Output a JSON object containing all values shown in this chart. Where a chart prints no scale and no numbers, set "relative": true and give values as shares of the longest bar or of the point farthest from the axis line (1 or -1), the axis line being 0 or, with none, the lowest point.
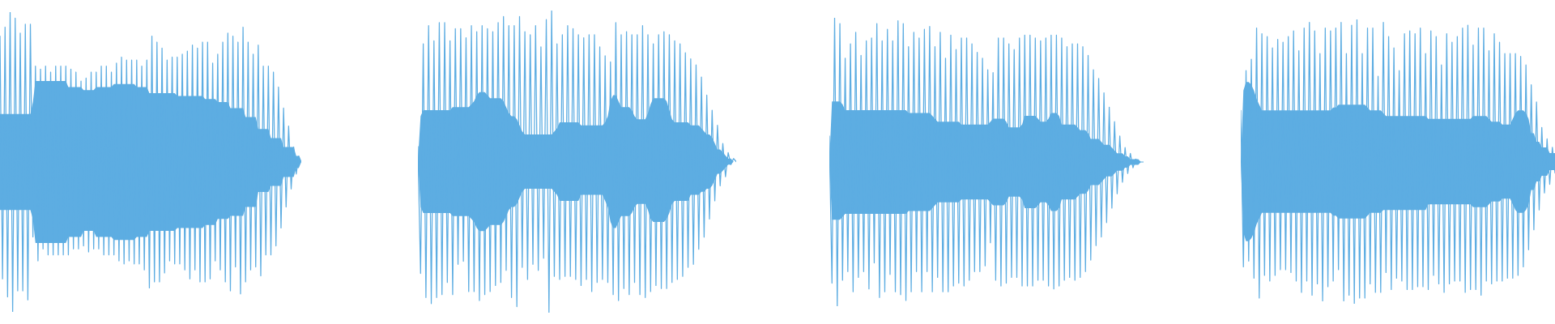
{
  "chart_data": [
    {
      "type": "line",
      "relative": true,
      "categories": [
        null,
        null,
        null,
        null,
        null,
        null,
        null,
        null,
        null,
        null,
        null,
        null,
        null,
        null,
        null,
        null,
        null,
        null,
        null,
        null,
        null,
        null,
        null,
        null,
        null,
        null,
        null,
        null,
        null,
        null,
        null,
        null,
        null,
        null,
        null,
        null,
        null,
        null,
        null,
        null,
        null,
        null,
        null,
        null,
        null,
        null,
        null,
        null,
        null,
        null,
        null,
        null,
        null,
        null,
        null,
        null,
        null,
        null,
        null,
        null,
        null,
        null,
        null,
        null,
        null,
        null,
        null,
        null,
        null,
        null,
        null,
        null,
        null,
        null,
        null,
        null,
        null,
        null,
        null,
        null,
        null,
        null,
        null,
        null,
        null,
        null,
        null,
        null,
        null,
        null,
        null,
        null,
        null,
        null,
        null,
        null,
        null,
        null,
        null,
        null,
        null,
        null,
        null,
        null,
        null,
        null,
        null,
        null,
        null,
        null,
        null,
        null,
        null,
        null,
        null,
        null,
        null,
        null,
        null,
        null
      ],
      "series": [
        {
          "color": "#5dade2",
          "values": [
            0.92,
            0.11,
            0.95,
            0.05,
            1.0,
            0.0,
            0.98,
            0.07,
            0.93,
            0.07,
            0.96,
            0.04,
            0.96,
            0.25,
            0.82,
            0.17,
            0.81,
            0.21,
            0.82,
            0.19,
            0.8,
            0.19,
            0.82,
            0.19,
            0.82,
            0.19,
            0.82,
            0.19,
            0.81,
            0.21,
            0.8,
            0.21,
            0.77,
            0.22,
            0.78,
            0.2,
            0.8,
            0.21,
            0.8,
            0.21,
            0.82,
            0.19,
            0.82,
            0.19,
            0.8,
            0.19,
            0.83,
            0.17,
            0.85,
            0.16,
            0.84,
            0.17,
            0.84,
            0.16,
            0.84,
            0.16,
            0.82,
            0.14,
            0.84,
            0.08,
            0.92,
            0.1,
            0.9,
            0.1,
            0.88,
            0.13,
            0.84,
            0.17,
            0.85,
            0.16,
            0.85,
            0.16,
            0.86,
            0.14,
            0.87,
            0.11,
            0.89,
            0.14,
            0.88,
            0.1,
            0.9,
            0.1,
            0.9,
            0.11,
            0.83,
            0.17,
            0.86,
            0.14,
            0.9,
            0.1,
            0.93,
            0.07,
            0.92,
            0.15,
            0.9,
            0.06,
            0.95,
            0.1,
            0.9,
            0.14,
            0.86,
            0.15,
            0.89,
            0.12,
            0.82,
            0.19,
            0.82,
            0.19,
            0.8,
            0.22,
            0.75,
            0.28,
            0.68,
            0.35,
            0.62,
            0.41,
            0.55,
            0.46,
            0.52,
            0.5
          ],
          "upper": [
            0.66,
            0.66,
            0.66,
            0.66,
            0.66,
            0.66,
            0.66,
            0.66,
            0.66,
            0.66,
            0.66,
            0.66,
            0.66,
            0.7,
            0.77,
            0.77,
            0.77,
            0.77,
            0.77,
            0.77,
            0.77,
            0.77,
            0.77,
            0.77,
            0.77,
            0.77,
            0.77,
            0.75,
            0.75,
            0.75,
            0.75,
            0.75,
            0.75,
            0.74,
            0.74,
            0.74,
            0.74,
            0.74,
            0.75,
            0.75,
            0.75,
            0.75,
            0.75,
            0.75,
            0.75,
            0.76,
            0.76,
            0.76,
            0.76,
            0.76,
            0.76,
            0.76,
            0.76,
            0.76,
            0.75,
            0.75,
            0.75,
            0.75,
            0.75,
            0.73,
            0.73,
            0.73,
            0.73,
            0.73,
            0.73,
            0.73,
            0.73,
            0.73,
            0.73,
            0.73,
            0.72,
            0.72,
            0.72,
            0.72,
            0.72,
            0.72,
            0.72,
            0.72,
            0.72,
            0.72,
            0.72,
            0.71,
            0.71,
            0.71,
            0.71,
            0.71,
            0.7,
            0.7,
            0.7,
            0.7,
            0.7,
            0.68,
            0.68,
            0.68,
            0.68,
            0.68,
            0.68,
            0.65,
            0.65,
            0.65,
            0.65,
            0.65,
            0.61,
            0.61,
            0.61,
            0.61,
            0.61,
            0.58,
            0.58,
            0.58,
            0.58,
            0.58,
            0.55,
            0.55,
            0.55,
            0.55,
            0.55,
            0.52,
            0.52,
            0.5
          ],
          "lower": [
            0.34,
            0.34,
            0.34,
            0.34,
            0.34,
            0.34,
            0.34,
            0.34,
            0.34,
            0.34,
            0.34,
            0.34,
            0.34,
            0.31,
            0.23,
            0.23,
            0.23,
            0.23,
            0.23,
            0.23,
            0.23,
            0.23,
            0.23,
            0.23,
            0.23,
            0.23,
            0.23,
            0.25,
            0.25,
            0.25,
            0.25,
            0.25,
            0.25,
            0.27,
            0.27,
            0.27,
            0.27,
            0.27,
            0.25,
            0.25,
            0.25,
            0.25,
            0.25,
            0.25,
            0.25,
            0.24,
            0.24,
            0.24,
            0.24,
            0.24,
            0.24,
            0.24,
            0.24,
            0.24,
            0.25,
            0.25,
            0.25,
            0.25,
            0.25,
            0.27,
            0.27,
            0.27,
            0.27,
            0.27,
            0.27,
            0.27,
            0.27,
            0.27,
            0.27,
            0.27,
            0.28,
            0.28,
            0.28,
            0.28,
            0.28,
            0.28,
            0.28,
            0.28,
            0.28,
            0.28,
            0.28,
            0.29,
            0.29,
            0.29,
            0.29,
            0.29,
            0.31,
            0.31,
            0.31,
            0.31,
            0.31,
            0.32,
            0.32,
            0.32,
            0.32,
            0.32,
            0.32,
            0.35,
            0.35,
            0.35,
            0.35,
            0.35,
            0.4,
            0.4,
            0.4,
            0.4,
            0.4,
            0.42,
            0.42,
            0.42,
            0.42,
            0.42,
            0.45,
            0.45,
            0.45,
            0.45,
            0.45,
            0.48,
            0.48,
            0.5
          ]
        }
      ]
    },
    {
      "type": "line",
      "relative": true,
      "categories": [
        null,
        null,
        null,
        null,
        null,
        null,
        null,
        null,
        null,
        null,
        null,
        null,
        null,
        null,
        null,
        null,
        null,
        null,
        null,
        null,
        null,
        null,
        null,
        null,
        null,
        null,
        null,
        null,
        null,
        null,
        null,
        null,
        null,
        null,
        null,
        null,
        null,
        null,
        null,
        null,
        null,
        null,
        null,
        null,
        null,
        null,
        null,
        null,
        null,
        null,
        null,
        null,
        null,
        null,
        null,
        null,
        null,
        null,
        null,
        null,
        null,
        null,
        null,
        null,
        null,
        null,
        null,
        null,
        null,
        null,
        null,
        null,
        null,
        null,
        null,
        null,
        null,
        null,
        null,
        null,
        null,
        null,
        null,
        null,
        null,
        null,
        null,
        null,
        null,
        null,
        null,
        null,
        null,
        null,
        null,
        null,
        null,
        null,
        null,
        null,
        null,
        null,
        null,
        null,
        null,
        null,
        null,
        null,
        null,
        null,
        null,
        null,
        null,
        null,
        null,
        null,
        null,
        null,
        null,
        null
      ],
      "series": [
        {
          "color": "#5dade2",
          "values": [
            0.55,
            0.13,
            0.89,
            0.05,
            0.95,
            0.03,
            0.9,
            0.05,
            0.96,
            0.06,
            0.96,
            0.1,
            0.9,
            0.06,
            0.94,
            0.16,
            0.94,
            0.17,
            0.91,
            0.07,
            0.95,
            0.07,
            0.93,
            0.04,
            0.95,
            0.06,
            0.94,
            0.07,
            0.93,
            0.09,
            0.96,
            0.1,
            0.98,
            0.14,
            0.95,
            0.05,
            0.95,
            0.02,
            0.98,
            0.15,
            0.93,
            0.11,
            0.92,
            0.16,
            0.95,
            0.14,
            0.88,
            0.18,
            0.97,
            0.0,
            1.0,
            0.12,
            0.89,
            0.11,
            0.92,
            0.12,
            0.95,
            0.12,
            0.94,
            0.11,
            0.92,
            0.09,
            0.91,
            0.11,
            0.92,
            0.07,
            0.92,
            0.1,
            0.88,
            0.11,
            0.85,
            0.1,
            0.83,
            0.06,
            0.96,
            0.04,
            0.92,
            0.08,
            0.93,
            0.06,
            0.92,
            0.1,
            0.92,
            0.06,
            0.95,
            0.05,
            0.92,
            0.07,
            0.89,
            0.09,
            0.92,
            0.08,
            0.93,
            0.08,
            0.92,
            0.1,
            0.9,
            0.11,
            0.89,
            0.12,
            0.86,
            0.15,
            0.84,
            0.16,
            0.82,
            0.21,
            0.78,
            0.25,
            0.72,
            0.31,
            0.67,
            0.37,
            0.62,
            0.42,
            0.56,
            0.45,
            0.53,
            0.49,
            0.51,
            0.5
          ],
          "upper": [
            0.5,
            0.65,
            0.67,
            0.67,
            0.67,
            0.67,
            0.67,
            0.67,
            0.67,
            0.67,
            0.67,
            0.67,
            0.67,
            0.68,
            0.68,
            0.68,
            0.68,
            0.68,
            0.68,
            0.68,
            0.69,
            0.7,
            0.72,
            0.73,
            0.73,
            0.73,
            0.72,
            0.71,
            0.71,
            0.71,
            0.71,
            0.71,
            0.7,
            0.68,
            0.66,
            0.65,
            0.65,
            0.64,
            0.62,
            0.6,
            0.59,
            0.59,
            0.59,
            0.59,
            0.59,
            0.59,
            0.59,
            0.59,
            0.59,
            0.59,
            0.59,
            0.6,
            0.61,
            0.63,
            0.63,
            0.63,
            0.63,
            0.63,
            0.63,
            0.63,
            0.63,
            0.62,
            0.62,
            0.62,
            0.62,
            0.62,
            0.62,
            0.62,
            0.62,
            0.62,
            0.63,
            0.65,
            0.7,
            0.72,
            0.72,
            0.7,
            0.68,
            0.68,
            0.68,
            0.68,
            0.67,
            0.65,
            0.64,
            0.64,
            0.64,
            0.64,
            0.66,
            0.69,
            0.71,
            0.71,
            0.71,
            0.71,
            0.71,
            0.7,
            0.67,
            0.64,
            0.63,
            0.63,
            0.63,
            0.63,
            0.63,
            0.63,
            0.62,
            0.62,
            0.62,
            0.62,
            0.61,
            0.6,
            0.59,
            0.59,
            0.58,
            0.56,
            0.54,
            0.54,
            0.53,
            0.52,
            0.51,
            0.51,
            0.5,
            0.5
          ],
          "lower": [
            0.5,
            0.35,
            0.33,
            0.33,
            0.33,
            0.33,
            0.33,
            0.33,
            0.33,
            0.33,
            0.33,
            0.33,
            0.33,
            0.32,
            0.32,
            0.32,
            0.32,
            0.32,
            0.32,
            0.32,
            0.31,
            0.3,
            0.28,
            0.27,
            0.27,
            0.27,
            0.28,
            0.29,
            0.29,
            0.29,
            0.29,
            0.29,
            0.3,
            0.32,
            0.34,
            0.35,
            0.35,
            0.36,
            0.38,
            0.4,
            0.41,
            0.41,
            0.41,
            0.41,
            0.41,
            0.41,
            0.41,
            0.41,
            0.41,
            0.41,
            0.41,
            0.4,
            0.39,
            0.37,
            0.37,
            0.37,
            0.37,
            0.37,
            0.37,
            0.37,
            0.37,
            0.39,
            0.39,
            0.39,
            0.39,
            0.39,
            0.39,
            0.39,
            0.39,
            0.39,
            0.37,
            0.35,
            0.3,
            0.28,
            0.28,
            0.3,
            0.32,
            0.32,
            0.32,
            0.32,
            0.33,
            0.35,
            0.36,
            0.36,
            0.36,
            0.36,
            0.34,
            0.31,
            0.3,
            0.3,
            0.3,
            0.3,
            0.3,
            0.31,
            0.33,
            0.36,
            0.37,
            0.37,
            0.37,
            0.37,
            0.37,
            0.37,
            0.39,
            0.39,
            0.39,
            0.39,
            0.4,
            0.4,
            0.41,
            0.41,
            0.42,
            0.44,
            0.46,
            0.46,
            0.47,
            0.48,
            0.49,
            0.49,
            0.5,
            0.5
          ]
        }
      ]
    },
    {
      "type": "line",
      "relative": true,
      "categories": [
        null,
        null,
        null,
        null,
        null,
        null,
        null,
        null,
        null,
        null,
        null,
        null,
        null,
        null,
        null,
        null,
        null,
        null,
        null,
        null,
        null,
        null,
        null,
        null,
        null,
        null,
        null,
        null,
        null,
        null,
        null,
        null,
        null,
        null,
        null,
        null,
        null,
        null,
        null,
        null,
        null,
        null,
        null,
        null,
        null,
        null,
        null,
        null,
        null,
        null,
        null,
        null,
        null,
        null,
        null,
        null,
        null,
        null,
        null,
        null,
        null,
        null,
        null,
        null,
        null,
        null,
        null,
        null,
        null,
        null,
        null,
        null,
        null,
        null,
        null,
        null,
        null,
        null,
        null,
        null,
        null,
        null,
        null,
        null,
        null,
        null,
        null,
        null,
        null,
        null,
        null,
        null,
        null,
        null,
        null,
        null,
        null,
        null,
        null,
        null,
        null,
        null,
        null,
        null,
        null,
        null,
        null,
        null,
        null,
        null,
        null,
        null,
        null,
        null,
        null,
        null,
        null,
        null,
        null,
        null
      ],
      "series": [
        {
          "color": "#5dade2",
          "values": [
            0.59,
            0.08,
            1.0,
            0.0,
            0.98,
            0.09,
            0.86,
            0.12,
            0.91,
            0.05,
            0.95,
            0.1,
            0.87,
            0.12,
            0.92,
            0.06,
            0.93,
            0.15,
            0.98,
            0.03,
            0.92,
            0.05,
            0.96,
            0.11,
            0.92,
            0.05,
            0.99,
            0.04,
            0.98,
            0.02,
            0.9,
            0.05,
            0.95,
            0.12,
            0.93,
            0.05,
            0.96,
            0.12,
            0.97,
            0.05,
            0.9,
            0.1,
            0.95,
            0.05,
            0.86,
            0.05,
            0.94,
            0.07,
            0.89,
            0.08,
            0.93,
            0.07,
            0.93,
            0.09,
            0.91,
            0.12,
            0.88,
            0.12,
            0.86,
            0.14,
            0.82,
            0.22,
            0.81,
            0.09,
            0.93,
            0.07,
            0.93,
            0.08,
            0.91,
            0.1,
            0.89,
            0.1,
            0.93,
            0.07,
            0.94,
            0.07,
            0.94,
            0.07,
            0.93,
            0.09,
            0.92,
            0.09,
            0.93,
            0.07,
            0.94,
            0.06,
            0.94,
            0.07,
            0.93,
            0.09,
            0.9,
            0.1,
            0.91,
            0.09,
            0.91,
            0.1,
            0.9,
            0.12,
            0.87,
            0.16,
            0.82,
            0.21,
            0.79,
            0.24,
            0.74,
            0.29,
            0.69,
            0.34,
            0.64,
            0.39,
            0.59,
            0.43,
            0.55,
            0.46,
            0.53,
            0.48,
            0.51,
            0.5,
            0.5,
            0.5
          ],
          "upper": [
            0.5,
            0.71,
            0.71,
            0.71,
            0.71,
            0.7,
            0.68,
            0.68,
            0.68,
            0.68,
            0.68,
            0.68,
            0.68,
            0.68,
            0.68,
            0.68,
            0.68,
            0.68,
            0.68,
            0.68,
            0.68,
            0.68,
            0.68,
            0.68,
            0.68,
            0.68,
            0.68,
            0.68,
            0.68,
            0.68,
            0.67,
            0.67,
            0.67,
            0.67,
            0.67,
            0.67,
            0.67,
            0.67,
            0.67,
            0.66,
            0.65,
            0.64,
            0.64,
            0.64,
            0.64,
            0.64,
            0.64,
            0.64,
            0.64,
            0.64,
            0.63,
            0.63,
            0.63,
            0.63,
            0.63,
            0.63,
            0.63,
            0.63,
            0.63,
            0.63,
            0.63,
            0.64,
            0.65,
            0.65,
            0.65,
            0.65,
            0.65,
            0.64,
            0.62,
            0.62,
            0.62,
            0.62,
            0.62,
            0.63,
            0.66,
            0.66,
            0.66,
            0.66,
            0.66,
            0.65,
            0.64,
            0.64,
            0.64,
            0.65,
            0.67,
            0.67,
            0.67,
            0.66,
            0.63,
            0.63,
            0.63,
            0.63,
            0.63,
            0.63,
            0.62,
            0.61,
            0.61,
            0.61,
            0.6,
            0.58,
            0.58,
            0.58,
            0.58,
            0.57,
            0.56,
            0.56,
            0.56,
            0.55,
            0.54,
            0.53,
            0.53,
            0.53,
            0.52,
            0.52,
            0.51,
            0.51,
            0.51,
            0.51,
            0.5,
            0.5
          ],
          "lower": [
            0.5,
            0.3,
            0.3,
            0.3,
            0.3,
            0.31,
            0.32,
            0.32,
            0.32,
            0.32,
            0.32,
            0.32,
            0.32,
            0.32,
            0.32,
            0.32,
            0.32,
            0.32,
            0.32,
            0.32,
            0.32,
            0.32,
            0.32,
            0.32,
            0.32,
            0.32,
            0.32,
            0.32,
            0.32,
            0.32,
            0.33,
            0.33,
            0.33,
            0.33,
            0.33,
            0.33,
            0.33,
            0.33,
            0.33,
            0.34,
            0.35,
            0.36,
            0.36,
            0.36,
            0.36,
            0.36,
            0.36,
            0.36,
            0.36,
            0.36,
            0.37,
            0.37,
            0.37,
            0.37,
            0.37,
            0.37,
            0.37,
            0.37,
            0.37,
            0.37,
            0.37,
            0.36,
            0.35,
            0.35,
            0.35,
            0.35,
            0.35,
            0.36,
            0.38,
            0.38,
            0.38,
            0.38,
            0.38,
            0.37,
            0.34,
            0.34,
            0.34,
            0.34,
            0.34,
            0.35,
            0.36,
            0.36,
            0.36,
            0.35,
            0.33,
            0.33,
            0.33,
            0.34,
            0.37,
            0.37,
            0.37,
            0.37,
            0.37,
            0.37,
            0.38,
            0.39,
            0.39,
            0.39,
            0.4,
            0.42,
            0.42,
            0.42,
            0.42,
            0.43,
            0.44,
            0.45,
            0.45,
            0.45,
            0.46,
            0.47,
            0.47,
            0.47,
            0.48,
            0.48,
            0.49,
            0.49,
            0.49,
            0.49,
            0.5,
            0.5
          ]
        }
      ]
    },
    {
      "type": "line",
      "relative": true,
      "categories": [
        null,
        null,
        null,
        null,
        null,
        null,
        null,
        null,
        null,
        null,
        null,
        null,
        null,
        null,
        null,
        null,
        null,
        null,
        null,
        null,
        null,
        null,
        null,
        null,
        null,
        null,
        null,
        null,
        null,
        null,
        null,
        null,
        null,
        null,
        null,
        null,
        null,
        null,
        null,
        null,
        null,
        null,
        null,
        null,
        null,
        null,
        null,
        null,
        null,
        null,
        null,
        null,
        null,
        null,
        null,
        null,
        null,
        null,
        null,
        null,
        null,
        null,
        null,
        null,
        null,
        null,
        null,
        null,
        null,
        null,
        null,
        null,
        null,
        null,
        null,
        null,
        null,
        null,
        null,
        null,
        null,
        null,
        null,
        null,
        null,
        null,
        null,
        null,
        null,
        null,
        null,
        null,
        null,
        null,
        null,
        null,
        null,
        null,
        null,
        null,
        null,
        null,
        null,
        null,
        null,
        null,
        null,
        null,
        null,
        null,
        null,
        null,
        null,
        null,
        null,
        null,
        null,
        null,
        null,
        null
      ],
      "series": [
        {
          "color": "#5dade2",
          "values": [
            0.68,
            0.13,
            0.82,
            0.15,
            0.86,
            0.09,
            0.97,
            0.02,
            0.95,
            0.1,
            0.94,
            0.08,
            0.9,
            0.1,
            0.93,
            0.12,
            0.92,
            0.12,
            0.94,
            0.11,
            0.96,
            0.08,
            0.89,
            0.04,
            0.97,
            0.08,
            0.99,
            0.03,
            0.96,
            0.07,
            0.88,
            0.01,
            0.97,
            0.06,
            0.96,
            0.08,
            0.97,
            0.12,
            0.99,
            0.01,
            0.88,
            0.03,
            0.98,
            0.0,
            1.0,
            0.02,
            0.88,
            0.02,
            0.97,
            0.07,
            0.97,
            0.04,
            0.8,
            0.04,
            0.99,
            0.11,
            0.94,
            0.05,
            0.9,
            0.09,
            0.82,
            0.08,
            0.95,
            0.05,
            0.96,
            0.05,
            0.95,
            0.06,
            0.97,
            0.06,
            0.88,
            0.05,
            0.96,
            0.1,
            0.94,
            0.07,
            0.84,
            0.04,
            0.95,
            0.07,
            0.92,
            0.08,
            0.94,
            0.08,
            0.97,
            0.04,
            0.98,
            0.05,
            0.91,
            0.05,
            0.97,
            0.03,
            0.97,
            0.08,
            0.89,
            0.07,
            0.95,
            0.08,
            0.92,
            0.08,
            0.88,
            0.09,
            0.88,
            0.09,
            0.88,
            0.1,
            0.87,
            0.13,
            0.84,
            0.19,
            0.77,
            0.26,
            0.71,
            0.33,
            0.62,
            0.39,
            0.58,
            0.42,
            0.55,
            0.46
          ],
          "upper": [
            0.5,
            0.75,
            0.78,
            0.78,
            0.77,
            0.75,
            0.72,
            0.7,
            0.68,
            0.68,
            0.68,
            0.68,
            0.68,
            0.68,
            0.68,
            0.68,
            0.68,
            0.68,
            0.68,
            0.68,
            0.68,
            0.68,
            0.68,
            0.68,
            0.68,
            0.68,
            0.68,
            0.68,
            0.68,
            0.68,
            0.68,
            0.68,
            0.68,
            0.68,
            0.68,
            0.69,
            0.69,
            0.7,
            0.7,
            0.7,
            0.7,
            0.7,
            0.7,
            0.7,
            0.7,
            0.7,
            0.7,
            0.7,
            0.69,
            0.68,
            0.68,
            0.68,
            0.68,
            0.68,
            0.67,
            0.66,
            0.66,
            0.66,
            0.66,
            0.66,
            0.66,
            0.66,
            0.66,
            0.66,
            0.66,
            0.66,
            0.66,
            0.66,
            0.66,
            0.66,
            0.66,
            0.65,
            0.65,
            0.65,
            0.65,
            0.65,
            0.65,
            0.65,
            0.65,
            0.65,
            0.65,
            0.65,
            0.65,
            0.65,
            0.65,
            0.65,
            0.65,
            0.65,
            0.66,
            0.66,
            0.66,
            0.66,
            0.66,
            0.66,
            0.65,
            0.64,
            0.64,
            0.64,
            0.64,
            0.63,
            0.63,
            0.63,
            0.63,
            0.65,
            0.67,
            0.68,
            0.68,
            0.68,
            0.67,
            0.65,
            0.6,
            0.6,
            0.57,
            0.57,
            0.55,
            0.55,
            0.55,
            0.53,
            0.53,
            0.53
          ],
          "lower": [
            0.5,
            0.25,
            0.22,
            0.22,
            0.23,
            0.25,
            0.28,
            0.3,
            0.32,
            0.32,
            0.32,
            0.32,
            0.32,
            0.32,
            0.32,
            0.32,
            0.32,
            0.32,
            0.32,
            0.32,
            0.32,
            0.32,
            0.32,
            0.32,
            0.32,
            0.32,
            0.32,
            0.32,
            0.32,
            0.32,
            0.32,
            0.32,
            0.32,
            0.32,
            0.32,
            0.31,
            0.31,
            0.3,
            0.3,
            0.3,
            0.3,
            0.3,
            0.3,
            0.3,
            0.3,
            0.3,
            0.3,
            0.3,
            0.31,
            0.32,
            0.32,
            0.32,
            0.32,
            0.32,
            0.33,
            0.33,
            0.33,
            0.33,
            0.33,
            0.33,
            0.33,
            0.33,
            0.33,
            0.33,
            0.33,
            0.33,
            0.33,
            0.33,
            0.33,
            0.33,
            0.33,
            0.35,
            0.35,
            0.35,
            0.35,
            0.35,
            0.35,
            0.35,
            0.35,
            0.35,
            0.35,
            0.35,
            0.35,
            0.35,
            0.35,
            0.35,
            0.35,
            0.35,
            0.34,
            0.34,
            0.34,
            0.34,
            0.34,
            0.34,
            0.35,
            0.36,
            0.36,
            0.36,
            0.36,
            0.37,
            0.37,
            0.37,
            0.37,
            0.35,
            0.33,
            0.32,
            0.32,
            0.32,
            0.33,
            0.35,
            0.4,
            0.4,
            0.43,
            0.43,
            0.45,
            0.45,
            0.45,
            0.47,
            0.47,
            0.47
          ]
        }
      ]
    }
  ]
}
